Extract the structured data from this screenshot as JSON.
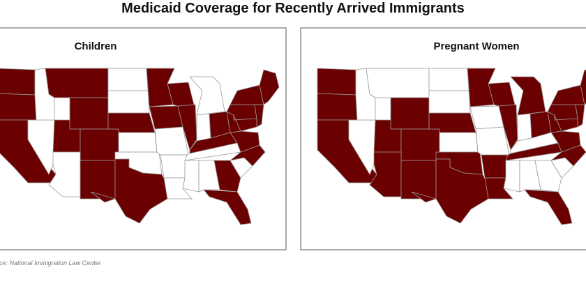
{
  "header": {
    "title": "Medicaid Coverage for Recently Arrived Immigrants"
  },
  "panels": [
    {
      "title": "Children"
    },
    {
      "title": "Pregnant Women"
    }
  ],
  "footer": {
    "source": "Source: National Immigration Law Center"
  }
}
